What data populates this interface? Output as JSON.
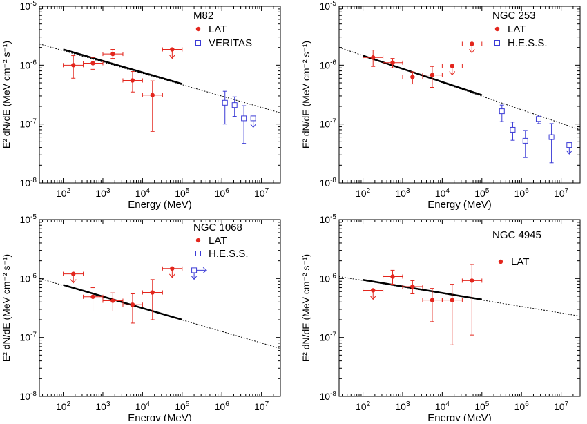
{
  "colors": {
    "lat": "#e3261d",
    "tev": "#3b3bd6",
    "fit": "#000000"
  },
  "chart_data": [
    {
      "type": "scatter",
      "source": "M82",
      "xlabel": "Energy (MeV)",
      "ylabel": "E² dN/dE (MeV cm⁻² s⁻¹)",
      "xscale": "log",
      "yscale": "log",
      "xlim": [
        25,
        30000000.0
      ],
      "ylim": [
        1e-08,
        1e-05
      ],
      "x_ticks": [
        {
          "v": 100,
          "m": "10",
          "e": "2"
        },
        {
          "v": 1000,
          "m": "10",
          "e": "3"
        },
        {
          "v": 10000,
          "m": "10",
          "e": "4"
        },
        {
          "v": 100000,
          "m": "10",
          "e": "5"
        },
        {
          "v": 1000000,
          "m": "10",
          "e": "6"
        },
        {
          "v": 10000000,
          "m": "10",
          "e": "7"
        }
      ],
      "y_ticks": [
        {
          "v": 1e-08,
          "m": "10",
          "e": "-8"
        },
        {
          "v": 1e-07,
          "m": "10",
          "e": "-7"
        },
        {
          "v": 1e-06,
          "m": "10",
          "e": "-6"
        },
        {
          "v": 1e-05,
          "m": "10",
          "e": "-5"
        }
      ],
      "legend": {
        "title": "M82",
        "position": "top-right",
        "entries": [
          {
            "label": "LAT",
            "marker": "dot"
          },
          {
            "label": "VERITAS",
            "marker": "square"
          }
        ]
      },
      "fit": {
        "x": [
          100,
          100000
        ],
        "y": [
          1.85e-06,
          4.8e-07
        ]
      },
      "fit_extension": {
        "x": [
          25,
          30000000
        ],
        "y": [
          2.3e-06,
          1.55e-07
        ]
      },
      "lat_points": [
        {
          "x": 180,
          "y": 1e-06,
          "xlo": 100,
          "xhi": 320,
          "ylo": 6e-07,
          "yhi": 1.45e-06
        },
        {
          "x": 560,
          "y": 1.08e-06,
          "xlo": 320,
          "xhi": 1000,
          "ylo": 8.5e-07,
          "yhi": 1.35e-06
        },
        {
          "x": 1780,
          "y": 1.55e-06,
          "xlo": 1000,
          "xhi": 3200,
          "ylo": 1.3e-06,
          "yhi": 1.85e-06
        },
        {
          "x": 5600,
          "y": 5.5e-07,
          "xlo": 3200,
          "xhi": 10000,
          "ylo": 3.5e-07,
          "yhi": 7.8e-07
        },
        {
          "x": 17800,
          "y": 3.1e-07,
          "xlo": 10000,
          "xhi": 32000,
          "ylo": 7.5e-08,
          "yhi": 5.4e-07
        }
      ],
      "lat_upper_limits": [
        {
          "x": 56000,
          "y": 1.85e-06,
          "xlo": 32000,
          "xhi": 100000
        }
      ],
      "tev_label": "VERITAS",
      "tev_points": [
        {
          "x": 1200000,
          "y": 2.3e-07,
          "ylo": 1e-07,
          "yhi": 3.6e-07
        },
        {
          "x": 2100000,
          "y": 2.1e-07,
          "ylo": 1.35e-07,
          "yhi": 2.9e-07
        },
        {
          "x": 3600000,
          "y": 1.25e-07,
          "ylo": 4.7e-08,
          "yhi": 2.05e-07
        }
      ],
      "tev_upper_limits": [
        {
          "x": 6200000,
          "y": 1.25e-07
        }
      ]
    },
    {
      "type": "scatter",
      "source": "NGC 253",
      "xlabel": "Energy (MeV)",
      "ylabel": "E² dN/dE (MeV cm⁻² s⁻¹)",
      "xscale": "log",
      "yscale": "log",
      "xlim": [
        25,
        30000000.0
      ],
      "ylim": [
        1e-08,
        1e-05
      ],
      "x_ticks": [
        {
          "v": 100,
          "m": "10",
          "e": "2"
        },
        {
          "v": 1000,
          "m": "10",
          "e": "3"
        },
        {
          "v": 10000,
          "m": "10",
          "e": "4"
        },
        {
          "v": 100000,
          "m": "10",
          "e": "5"
        },
        {
          "v": 1000000,
          "m": "10",
          "e": "6"
        },
        {
          "v": 10000000,
          "m": "10",
          "e": "7"
        }
      ],
      "y_ticks": [
        {
          "v": 1e-08,
          "m": "10",
          "e": "-8"
        },
        {
          "v": 1e-07,
          "m": "10",
          "e": "-7"
        },
        {
          "v": 1e-06,
          "m": "10",
          "e": "-6"
        },
        {
          "v": 1e-05,
          "m": "10",
          "e": "-5"
        }
      ],
      "legend": {
        "title": "NGC 253",
        "position": "top-right",
        "entries": [
          {
            "label": "LAT",
            "marker": "dot"
          },
          {
            "label": "H.E.S.S.",
            "marker": "square"
          }
        ]
      },
      "fit": {
        "x": [
          100,
          100000
        ],
        "y": [
          1.45e-06,
          3.1e-07
        ]
      },
      "fit_extension": {
        "x": [
          25,
          30000000
        ],
        "y": [
          2e-06,
          8e-08
        ]
      },
      "lat_points": [
        {
          "x": 180,
          "y": 1.35e-06,
          "xlo": 100,
          "xhi": 320,
          "ylo": 9.5e-07,
          "yhi": 1.8e-06
        },
        {
          "x": 560,
          "y": 1.1e-06,
          "xlo": 320,
          "xhi": 1000,
          "ylo": 9e-07,
          "yhi": 1.3e-06
        },
        {
          "x": 1780,
          "y": 6.3e-07,
          "xlo": 1000,
          "xhi": 3200,
          "ylo": 4.8e-07,
          "yhi": 7.7e-07
        },
        {
          "x": 5600,
          "y": 6.8e-07,
          "xlo": 3200,
          "xhi": 10000,
          "ylo": 4.2e-07,
          "yhi": 9.5e-07
        }
      ],
      "lat_upper_limits": [
        {
          "x": 17800,
          "y": 9.7e-07,
          "xlo": 10000,
          "xhi": 32000
        },
        {
          "x": 56000,
          "y": 2.3e-06,
          "xlo": 32000,
          "xhi": 100000
        }
      ],
      "tev_label": "H.E.S.S.",
      "tev_points": [
        {
          "x": 320000,
          "y": 1.65e-07,
          "ylo": 1.1e-07,
          "yhi": 2.1e-07
        },
        {
          "x": 600000,
          "y": 8e-08,
          "ylo": 5.3e-08,
          "yhi": 1.08e-07
        },
        {
          "x": 1250000,
          "y": 5.2e-08,
          "ylo": 2.7e-08,
          "yhi": 7.8e-08
        },
        {
          "x": 2700000,
          "y": 1.22e-07,
          "ylo": 1.02e-07,
          "yhi": 1.42e-07
        },
        {
          "x": 5700000,
          "y": 6e-08,
          "ylo": 2.2e-08,
          "yhi": 1.02e-07
        }
      ],
      "tev_upper_limits": [
        {
          "x": 16000000,
          "y": 4.4e-08
        }
      ]
    },
    {
      "type": "scatter",
      "source": "NGC 1068",
      "xlabel": "Energy (MeV)",
      "ylabel": "E² dN/dE (MeV cm⁻² s⁻¹)",
      "xscale": "log",
      "yscale": "log",
      "xlim": [
        25,
        30000000.0
      ],
      "ylim": [
        1e-08,
        1e-05
      ],
      "x_ticks": [
        {
          "v": 100,
          "m": "10",
          "e": "2"
        },
        {
          "v": 1000,
          "m": "10",
          "e": "3"
        },
        {
          "v": 10000,
          "m": "10",
          "e": "4"
        },
        {
          "v": 100000,
          "m": "10",
          "e": "5"
        },
        {
          "v": 1000000,
          "m": "10",
          "e": "6"
        },
        {
          "v": 10000000,
          "m": "10",
          "e": "7"
        }
      ],
      "y_ticks": [
        {
          "v": 1e-08,
          "m": "10",
          "e": "-8"
        },
        {
          "v": 1e-07,
          "m": "10",
          "e": "-7"
        },
        {
          "v": 1e-06,
          "m": "10",
          "e": "-6"
        },
        {
          "v": 1e-05,
          "m": "10",
          "e": "-5"
        }
      ],
      "legend": {
        "title": "NGC 1068",
        "position": "top-right",
        "entries": [
          {
            "label": "LAT",
            "marker": "dot"
          },
          {
            "label": "H.E.S.S.",
            "marker": "square"
          }
        ]
      },
      "fit": {
        "x": [
          100,
          100000
        ],
        "y": [
          7.8e-07,
          2e-07
        ]
      },
      "fit_extension": {
        "x": [
          25,
          30000000
        ],
        "y": [
          1e-06,
          6.5e-08
        ]
      },
      "lat_points": [
        {
          "x": 560,
          "y": 4.9e-07,
          "xlo": 320,
          "xhi": 1000,
          "ylo": 2.8e-07,
          "yhi": 7e-07
        },
        {
          "x": 1780,
          "y": 4.2e-07,
          "xlo": 1000,
          "xhi": 3200,
          "ylo": 2.8e-07,
          "yhi": 5.7e-07
        },
        {
          "x": 5600,
          "y": 3.6e-07,
          "xlo": 3200,
          "xhi": 10000,
          "ylo": 1.75e-07,
          "yhi": 5.5e-07
        },
        {
          "x": 17800,
          "y": 5.8e-07,
          "xlo": 10000,
          "xhi": 32000,
          "ylo": 2e-07,
          "yhi": 9.6e-07
        }
      ],
      "lat_upper_limits": [
        {
          "x": 180,
          "y": 1.2e-06,
          "xlo": 100,
          "xhi": 320
        },
        {
          "x": 56000,
          "y": 1.48e-06,
          "xlo": 32000,
          "xhi": 100000
        }
      ],
      "tev_label": "H.E.S.S.",
      "tev_points": [],
      "tev_upper_limits": [
        {
          "x": 200000,
          "y": 1.38e-06,
          "right_arrow": true
        }
      ]
    },
    {
      "type": "scatter",
      "source": "NGC 4945",
      "xlabel": "Energy (MeV)",
      "ylabel": "E² dN/dE (MeV cm⁻² s⁻¹)",
      "xscale": "log",
      "yscale": "log",
      "xlim": [
        25,
        30000000.0
      ],
      "ylim": [
        1e-08,
        1e-05
      ],
      "x_ticks": [
        {
          "v": 100,
          "m": "10",
          "e": "2"
        },
        {
          "v": 1000,
          "m": "10",
          "e": "3"
        },
        {
          "v": 10000,
          "m": "10",
          "e": "4"
        },
        {
          "v": 100000,
          "m": "10",
          "e": "5"
        },
        {
          "v": 1000000,
          "m": "10",
          "e": "6"
        },
        {
          "v": 10000000,
          "m": "10",
          "e": "7"
        }
      ],
      "y_ticks": [
        {
          "v": 1e-08,
          "m": "10",
          "e": "-8"
        },
        {
          "v": 1e-07,
          "m": "10",
          "e": "-7"
        },
        {
          "v": 1e-06,
          "m": "10",
          "e": "-6"
        },
        {
          "v": 1e-05,
          "m": "10",
          "e": "-5"
        }
      ],
      "legend": {
        "title": "NGC 4945",
        "position": "top-right",
        "entries": [
          {
            "label": "LAT",
            "marker": "dot"
          }
        ]
      },
      "fit": {
        "x": [
          100,
          100000
        ],
        "y": [
          9.5e-07,
          4.4e-07
        ]
      },
      "fit_extension": {
        "x": [
          25,
          30000000
        ],
        "y": [
          1.08e-06,
          2.3e-07
        ]
      },
      "lat_points": [
        {
          "x": 560,
          "y": 1.08e-06,
          "xlo": 320,
          "xhi": 1000,
          "ylo": 8e-07,
          "yhi": 1.38e-06
        },
        {
          "x": 1780,
          "y": 7.3e-07,
          "xlo": 1000,
          "xhi": 3200,
          "ylo": 5.5e-07,
          "yhi": 9.2e-07
        },
        {
          "x": 5600,
          "y": 4.3e-07,
          "xlo": 3200,
          "xhi": 10000,
          "ylo": 1.85e-07,
          "yhi": 6.8e-07
        },
        {
          "x": 17800,
          "y": 4.3e-07,
          "xlo": 10000,
          "xhi": 32000,
          "ylo": 7.5e-08,
          "yhi": 8e-07
        },
        {
          "x": 56000,
          "y": 9.2e-07,
          "xlo": 32000,
          "xhi": 100000,
          "ylo": 1.1e-07,
          "yhi": 1.73e-06
        }
      ],
      "lat_upper_limits": [
        {
          "x": 180,
          "y": 6.3e-07,
          "xlo": 100,
          "xhi": 320
        }
      ],
      "tev_label": "",
      "tev_points": [],
      "tev_upper_limits": []
    }
  ]
}
